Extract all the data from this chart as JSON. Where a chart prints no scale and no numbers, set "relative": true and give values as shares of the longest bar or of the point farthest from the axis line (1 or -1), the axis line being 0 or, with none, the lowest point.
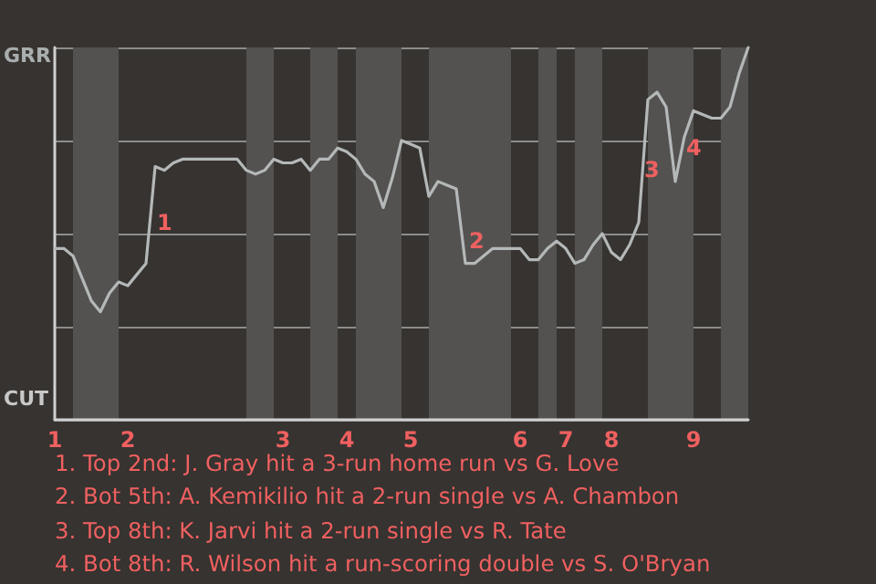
{
  "chart_data": {
    "type": "line",
    "categories": [
      "1",
      null,
      null,
      null,
      null,
      null,
      null,
      null,
      "2",
      null,
      null,
      null,
      null,
      null,
      null,
      null,
      null,
      null,
      null,
      null,
      null,
      null,
      null,
      null,
      null,
      "3",
      null,
      null,
      null,
      null,
      null,
      null,
      "4",
      null,
      null,
      null,
      null,
      null,
      null,
      "5",
      null,
      null,
      null,
      null,
      null,
      null,
      null,
      null,
      null,
      null,
      null,
      "6",
      null,
      null,
      null,
      null,
      "7",
      null,
      null,
      null,
      null,
      "8",
      null,
      null,
      null,
      null,
      null,
      null,
      null,
      null,
      "9",
      null,
      null,
      null,
      null,
      null,
      null
    ],
    "series": [
      {
        "color": "#b4b8b8",
        "values": [
          0.46,
          0.46,
          0.44,
          0.38,
          0.32,
          0.29,
          0.34,
          0.37,
          0.36,
          0.39,
          0.42,
          0.68,
          0.67,
          0.69,
          0.7,
          0.7,
          0.7,
          0.7,
          0.7,
          0.7,
          0.7,
          0.67,
          0.66,
          0.67,
          0.7,
          0.69,
          0.69,
          0.7,
          0.67,
          0.7,
          0.7,
          0.73,
          0.72,
          0.7,
          0.66,
          0.64,
          0.57,
          0.65,
          0.75,
          0.74,
          0.73,
          0.6,
          0.64,
          0.63,
          0.62,
          0.42,
          0.42,
          0.44,
          0.46,
          0.46,
          0.46,
          0.46,
          0.43,
          0.43,
          0.46,
          0.48,
          0.46,
          0.42,
          0.43,
          0.47,
          0.5,
          0.45,
          0.43,
          0.47,
          0.53,
          0.86,
          0.88,
          0.84,
          0.64,
          0.76,
          0.83,
          0.82,
          0.81,
          0.81,
          0.84,
          0.93,
          1.0
        ]
      }
    ],
    "relative": true,
    "grid": "y",
    "marker": "none",
    "line_style": "solid",
    "annotations": [
      "GRR",
      "CUT",
      "1",
      "2",
      "3",
      "4",
      "1. Top 2nd: J. Gray hit a 3-run home run vs G. Love",
      "2. Bot 5th: A. Kemikilio hit a 2-run single vs A. Chambon",
      "3. Top 8th: K. Jarvi hit a 2-run single vs R. Tate",
      "4. Bot 8th: R. Wilson hit a run-scoring double vs S. O'Bryan"
    ]
  }
}
